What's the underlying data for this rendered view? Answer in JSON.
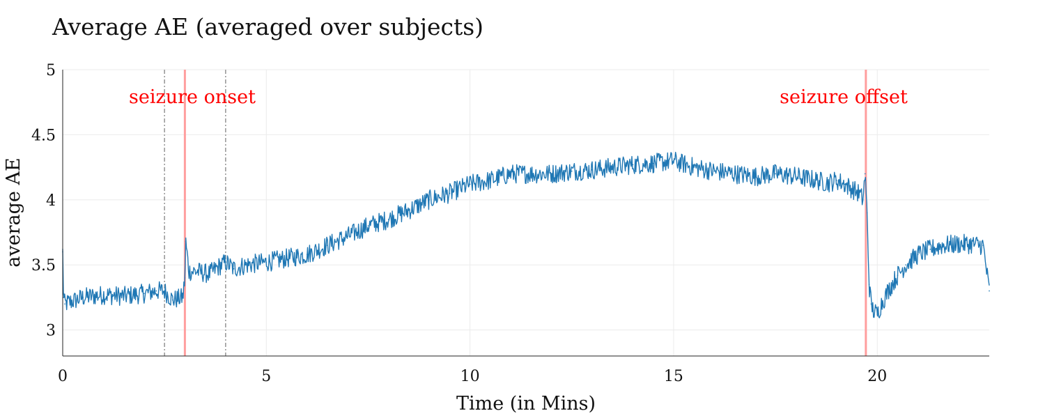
{
  "chart_data": {
    "type": "line",
    "title": "Average AE (averaged over subjects)",
    "xlabel": "Time (in Mins)",
    "ylabel": "average AE",
    "xlim": [
      0,
      22.75
    ],
    "ylim": [
      2.8,
      5.0
    ],
    "x_ticks": [
      0,
      5,
      10,
      15,
      20
    ],
    "x_tick_labels": [
      "0",
      "5",
      "10",
      "15",
      "20"
    ],
    "y_ticks": [
      3,
      3.5,
      4,
      4.5,
      5
    ],
    "y_tick_labels": [
      "3",
      "3.5",
      "4",
      "4.5",
      "5"
    ],
    "grid": true,
    "series": [
      {
        "name": "average AE",
        "color": "#1f77b4",
        "x": [
          0,
          0.02,
          0.05,
          0.5,
          1.0,
          1.5,
          2.0,
          2.3,
          2.5,
          2.7,
          2.95,
          3.0,
          3.02,
          3.1,
          3.3,
          3.6,
          3.8,
          4.0,
          4.2,
          4.5,
          5.0,
          5.5,
          6.0,
          6.5,
          7.0,
          7.5,
          8.0,
          8.5,
          9.0,
          9.5,
          10.0,
          10.5,
          11.0,
          11.5,
          12.0,
          12.5,
          13.0,
          13.5,
          14.0,
          14.5,
          15.0,
          15.5,
          16.0,
          16.5,
          17.0,
          17.5,
          18.0,
          18.5,
          18.8,
          19.0,
          19.2,
          19.4,
          19.55,
          19.65,
          19.7,
          19.75,
          19.8,
          19.85,
          19.9,
          20.0,
          20.1,
          20.3,
          20.5,
          20.7,
          21.0,
          21.3,
          21.6,
          22.0,
          22.3,
          22.6,
          22.75
        ],
        "values": [
          3.6,
          3.25,
          3.2,
          3.25,
          3.27,
          3.26,
          3.28,
          3.3,
          3.3,
          3.23,
          3.25,
          3.4,
          3.68,
          3.45,
          3.45,
          3.43,
          3.48,
          3.52,
          3.47,
          3.5,
          3.52,
          3.55,
          3.58,
          3.65,
          3.72,
          3.8,
          3.85,
          3.92,
          4.0,
          4.05,
          4.12,
          4.15,
          4.2,
          4.2,
          4.2,
          4.22,
          4.23,
          4.25,
          4.27,
          4.28,
          4.3,
          4.25,
          4.22,
          4.2,
          4.18,
          4.2,
          4.18,
          4.15,
          4.13,
          4.15,
          4.12,
          4.08,
          4.05,
          4.0,
          4.2,
          3.9,
          3.35,
          3.2,
          3.15,
          3.12,
          3.2,
          3.32,
          3.42,
          3.5,
          3.58,
          3.62,
          3.65,
          3.66,
          3.66,
          3.65,
          3.3
        ]
      }
    ],
    "markers": {
      "onset": {
        "x": 3.0,
        "label": "seizure onset",
        "color": "#ff0000",
        "line_color": "#ff9e9e"
      },
      "offset": {
        "x": 19.72,
        "label": "seizure offset",
        "color": "#ff0000",
        "line_color": "#ff9e9e"
      },
      "window_lines": {
        "x": [
          2.5,
          4.0
        ],
        "color": "#9a9a9a"
      }
    }
  }
}
